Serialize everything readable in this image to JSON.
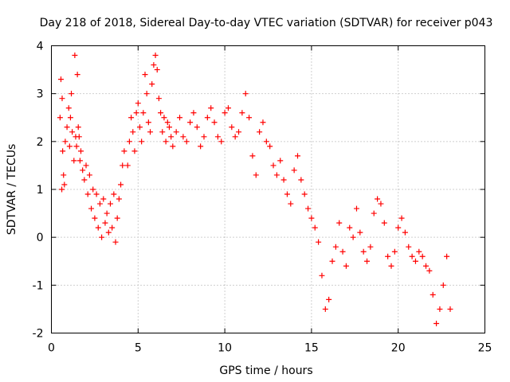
{
  "chart_data": {
    "type": "scatter",
    "title": "Day 218 of 2018, Sidereal Day-to-day VTEC variation (SDTVAR) for receiver p043",
    "xlabel": "GPS time / hours",
    "ylabel": "SDTVAR / TECUs",
    "xlim": [
      0,
      25
    ],
    "ylim": [
      -2,
      4
    ],
    "xticks": [
      0,
      5,
      10,
      15,
      20,
      25
    ],
    "yticks": [
      -2,
      -1,
      0,
      1,
      2,
      3,
      4
    ],
    "xtick_labels": [
      "0",
      "5",
      "10",
      "15",
      "20",
      "25"
    ],
    "ytick_labels": [
      "-2",
      "-1",
      "0",
      "1",
      "2",
      "3",
      "4"
    ],
    "grid": true,
    "marker": "+",
    "color": "#ff0000",
    "series": [
      {
        "name": "SDTVAR",
        "x": [
          0.5,
          0.55,
          0.6,
          0.62,
          0.65,
          0.7,
          0.75,
          0.8,
          0.9,
          1.0,
          1.05,
          1.1,
          1.15,
          1.2,
          1.3,
          1.35,
          1.4,
          1.45,
          1.5,
          1.55,
          1.6,
          1.65,
          1.7,
          1.8,
          1.9,
          2.0,
          2.1,
          2.2,
          2.3,
          2.4,
          2.5,
          2.6,
          2.7,
          2.8,
          2.9,
          3.0,
          3.1,
          3.2,
          3.3,
          3.4,
          3.5,
          3.6,
          3.7,
          3.8,
          3.9,
          4.0,
          4.1,
          4.2,
          4.4,
          4.5,
          4.6,
          4.7,
          4.8,
          4.9,
          5.0,
          5.1,
          5.2,
          5.3,
          5.4,
          5.5,
          5.6,
          5.7,
          5.8,
          5.9,
          6.0,
          6.1,
          6.2,
          6.3,
          6.4,
          6.5,
          6.6,
          6.7,
          6.8,
          6.9,
          7.0,
          7.2,
          7.4,
          7.6,
          7.8,
          8.0,
          8.2,
          8.4,
          8.6,
          8.8,
          9.0,
          9.2,
          9.4,
          9.6,
          9.8,
          10.0,
          10.2,
          10.4,
          10.6,
          10.8,
          11.0,
          11.2,
          11.4,
          11.6,
          11.8,
          12.0,
          12.2,
          12.4,
          12.6,
          12.8,
          13.0,
          13.2,
          13.4,
          13.6,
          13.8,
          14.0,
          14.2,
          14.4,
          14.6,
          14.8,
          15.0,
          15.2,
          15.4,
          15.6,
          15.8,
          16.0,
          16.2,
          16.4,
          16.6,
          16.8,
          17.0,
          17.2,
          17.4,
          17.6,
          17.8,
          18.0,
          18.2,
          18.4,
          18.6,
          18.8,
          19.0,
          19.2,
          19.4,
          19.6,
          19.8,
          20.0,
          20.2,
          20.4,
          20.6,
          20.8,
          21.0,
          21.2,
          21.4,
          21.6,
          21.8,
          22.0,
          22.2,
          22.4,
          22.6,
          22.8,
          23.0
        ],
        "y": [
          2.5,
          3.3,
          1.0,
          2.9,
          1.8,
          1.3,
          1.1,
          2.0,
          2.3,
          2.7,
          1.9,
          2.5,
          3.0,
          2.2,
          1.6,
          3.8,
          2.1,
          1.9,
          3.4,
          2.3,
          2.1,
          1.6,
          1.8,
          1.4,
          1.2,
          1.5,
          0.9,
          1.3,
          0.6,
          1.0,
          0.4,
          0.9,
          0.2,
          0.7,
          0.0,
          0.8,
          0.3,
          0.5,
          0.1,
          0.7,
          0.2,
          0.9,
          -0.1,
          0.4,
          0.8,
          1.1,
          1.5,
          1.8,
          1.5,
          2.0,
          2.5,
          2.2,
          1.8,
          2.6,
          2.8,
          2.3,
          2.0,
          2.6,
          3.4,
          3.0,
          2.4,
          2.2,
          3.2,
          3.6,
          3.8,
          3.5,
          2.9,
          2.6,
          2.2,
          2.5,
          2.0,
          2.4,
          2.3,
          2.1,
          1.9,
          2.2,
          2.5,
          2.1,
          2.0,
          2.4,
          2.6,
          2.3,
          1.9,
          2.1,
          2.5,
          2.7,
          2.4,
          2.1,
          2.0,
          2.6,
          2.7,
          2.3,
          2.1,
          2.2,
          2.6,
          3.0,
          2.5,
          1.7,
          1.3,
          2.2,
          2.4,
          2.0,
          1.9,
          1.5,
          1.3,
          1.6,
          1.2,
          0.9,
          0.7,
          1.4,
          1.7,
          1.2,
          0.9,
          0.6,
          0.4,
          0.2,
          -0.1,
          -0.8,
          -1.5,
          -1.3,
          -0.5,
          -0.2,
          0.3,
          -0.3,
          -0.6,
          0.2,
          0.0,
          0.6,
          0.1,
          -0.3,
          -0.5,
          -0.2,
          0.5,
          0.8,
          0.7,
          0.3,
          -0.4,
          -0.6,
          -0.3,
          0.2,
          0.4,
          0.1,
          -0.2,
          -0.4,
          -0.5,
          -0.3,
          -0.4,
          -0.6,
          -0.7,
          -1.2,
          -1.8,
          -1.5,
          -1.0,
          -0.4,
          -1.5
        ]
      }
    ]
  }
}
